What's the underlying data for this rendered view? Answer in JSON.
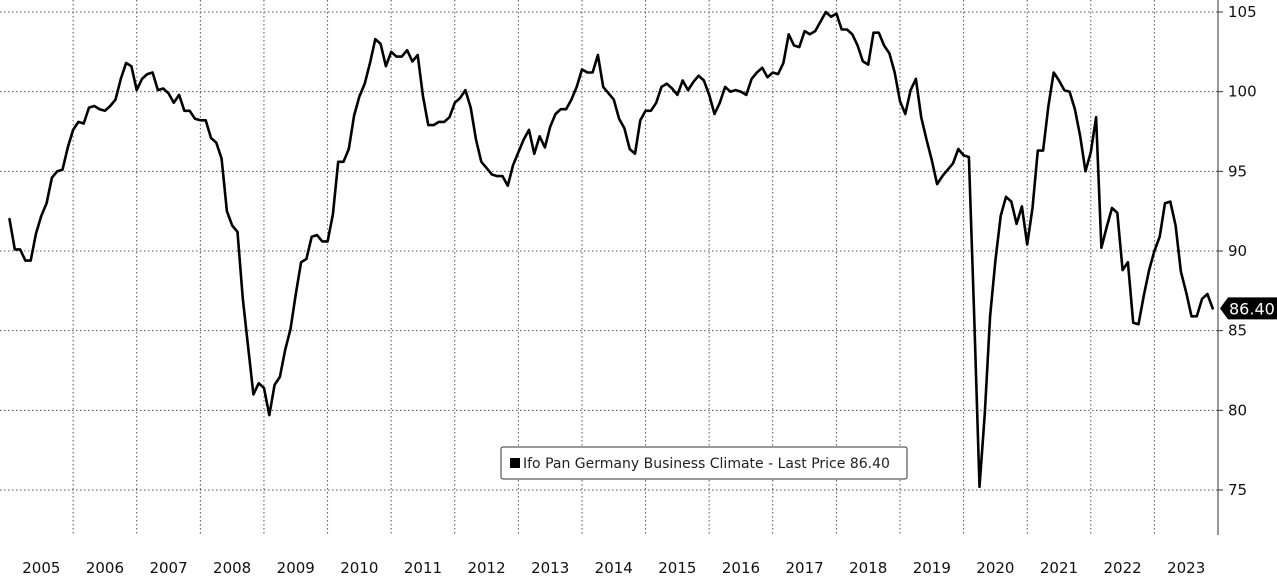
{
  "chart_data": {
    "type": "line",
    "title": "",
    "xlabel": "",
    "ylabel": "",
    "x_start": "2005-01",
    "x_end": "2023-06",
    "xlim": [
      2004.85,
      2024.0
    ],
    "ylim": [
      72.5,
      105.5
    ],
    "grid": true,
    "y_ticks": [
      75,
      80,
      85,
      90,
      95,
      100,
      105
    ],
    "x_ticks": [
      "2005",
      "2006",
      "2007",
      "2008",
      "2009",
      "2010",
      "2011",
      "2012",
      "2013",
      "2014",
      "2015",
      "2016",
      "2017",
      "2018",
      "2019",
      "2020",
      "2021",
      "2022",
      "2023"
    ],
    "last_price_label": "86.40",
    "legend": {
      "placement": "bottom-center",
      "text": "Ifo Pan Germany Business Climate - Last Price 86.40"
    },
    "series": [
      {
        "name": "Ifo Pan Germany Business Climate",
        "color": "#000000",
        "values": [
          92.0,
          90.1,
          90.1,
          89.4,
          89.4,
          91.1,
          92.2,
          93.0,
          94.6,
          95.0,
          95.1,
          96.5,
          97.6,
          98.1,
          98.0,
          99.0,
          99.1,
          98.9,
          98.8,
          99.1,
          99.5,
          100.8,
          101.8,
          101.6,
          100.1,
          100.8,
          101.1,
          101.2,
          100.1,
          100.2,
          99.9,
          99.3,
          99.8,
          98.8,
          98.8,
          98.3,
          98.2,
          98.2,
          97.1,
          96.8,
          95.8,
          92.5,
          91.6,
          91.2,
          87.0,
          84.0,
          81.0,
          81.7,
          81.4,
          79.7,
          81.6,
          82.1,
          83.8,
          85.1,
          87.3,
          89.3,
          89.5,
          90.9,
          91.0,
          90.6,
          90.6,
          92.3,
          95.6,
          95.6,
          96.4,
          98.5,
          99.7,
          100.5,
          101.8,
          103.3,
          103.0,
          101.6,
          102.5,
          102.2,
          102.2,
          102.6,
          101.9,
          102.3,
          99.7,
          97.9,
          97.9,
          98.1,
          98.1,
          98.4,
          99.3,
          99.6,
          100.1,
          99.0,
          97.0,
          95.6,
          95.2,
          94.8,
          94.7,
          94.7,
          94.1,
          95.4,
          96.2,
          97.0,
          97.6,
          96.1,
          97.2,
          96.5,
          97.8,
          98.6,
          98.9,
          98.9,
          99.5,
          100.3,
          101.4,
          101.2,
          101.2,
          102.3,
          100.3,
          99.9,
          99.5,
          98.3,
          97.7,
          96.4,
          96.1,
          98.2,
          98.8,
          98.8,
          99.3,
          100.3,
          100.5,
          100.2,
          99.8,
          100.7,
          100.1,
          100.6,
          101.0,
          100.7,
          99.8,
          98.6,
          99.3,
          100.3,
          100.0,
          100.1,
          100.0,
          99.8,
          100.8,
          101.2,
          101.5,
          100.9,
          101.2,
          101.1,
          101.8,
          103.6,
          102.9,
          102.8,
          103.8,
          103.6,
          103.8,
          104.4,
          105.0,
          104.7,
          104.9,
          103.9,
          103.9,
          103.6,
          102.9,
          101.9,
          101.7,
          103.7,
          103.7,
          102.9,
          102.4,
          101.2,
          99.4,
          98.6,
          100.1,
          100.8,
          98.4,
          97.0,
          95.7,
          94.2,
          94.7,
          95.1,
          95.5,
          96.4,
          96.0,
          95.9,
          85.9,
          75.2,
          79.8,
          85.9,
          89.4,
          92.2,
          93.4,
          93.1,
          91.7,
          92.8,
          90.4,
          92.7,
          96.3,
          96.3,
          99.1,
          101.2,
          100.7,
          100.1,
          100.0,
          98.9,
          97.2,
          95.0,
          96.2,
          98.4,
          90.2,
          91.5,
          92.7,
          92.4,
          88.8,
          89.3,
          85.5,
          85.4,
          87.2,
          88.8,
          90.0,
          90.9,
          93.0,
          93.1,
          91.6,
          88.7,
          87.4,
          85.9,
          85.9,
          87.0,
          87.3,
          86.4
        ]
      }
    ]
  }
}
